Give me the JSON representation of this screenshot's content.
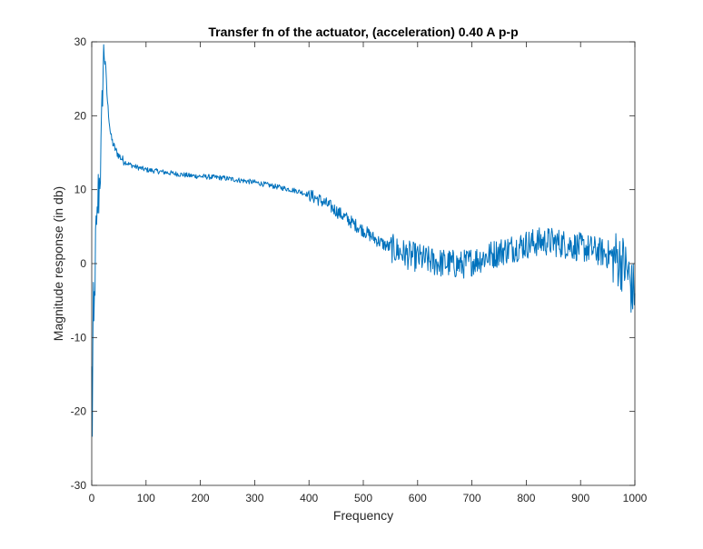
{
  "chart_data": {
    "type": "line",
    "title": "Transfer fn of the actuator, (acceleration) 0.40 A p-p",
    "xlabel": "Frequency",
    "ylabel": "Magnitude response (in db)",
    "xlim": [
      0,
      1000
    ],
    "ylim": [
      -30,
      30
    ],
    "xticks": [
      "0",
      "100",
      "200",
      "300",
      "400",
      "500",
      "600",
      "700",
      "800",
      "900",
      "1000"
    ],
    "yticks": [
      "-30",
      "-20",
      "-10",
      "0",
      "10",
      "20",
      "30"
    ],
    "grid": false,
    "box": true,
    "series": [
      {
        "color": "#0072BD",
        "x": [
          0,
          1,
          2,
          3,
          4,
          5,
          6,
          7,
          8,
          9,
          10,
          11,
          12,
          13,
          14,
          15,
          16,
          17,
          18,
          19,
          20,
          21,
          22,
          23,
          24,
          25,
          26,
          27,
          28,
          29,
          30,
          32,
          34,
          36,
          38,
          40,
          45,
          50,
          55,
          60,
          70,
          80,
          90,
          100,
          120,
          140,
          160,
          180,
          200,
          220,
          240,
          260,
          280,
          300,
          320,
          340,
          360,
          380,
          400,
          420,
          440,
          460,
          480,
          500,
          520,
          540,
          560,
          580,
          600,
          620,
          640,
          660,
          680,
          700,
          720,
          740,
          760,
          780,
          800,
          820,
          840,
          860,
          880,
          900,
          920,
          940,
          960,
          970,
          980,
          990,
          995,
          1000
        ],
        "y": [
          -15,
          -22,
          -12,
          -6,
          -9,
          -5,
          -2,
          2,
          5,
          3,
          6,
          8,
          10,
          9,
          11,
          12,
          13,
          15,
          18,
          21,
          24,
          26.5,
          28,
          28.8,
          28.5,
          27.5,
          26,
          24.5,
          23,
          22,
          21,
          19.5,
          18,
          17,
          16.5,
          16,
          15.2,
          14.6,
          14.2,
          13.8,
          13.4,
          13.1,
          12.9,
          12.7,
          12.5,
          12.3,
          12.1,
          11.9,
          11.8,
          11.7,
          11.6,
          11.4,
          11.2,
          11.0,
          10.7,
          10.4,
          10.1,
          9.8,
          9.3,
          8.6,
          7.7,
          6.6,
          5.5,
          4.5,
          3.4,
          2.5,
          1.8,
          1.2,
          0.8,
          0.4,
          0.1,
          0,
          -0.2,
          0.3,
          0.8,
          1.3,
          1.8,
          2.2,
          2.6,
          2.9,
          3.0,
          2.8,
          2.5,
          2.2,
          1.9,
          1.5,
          1.0,
          0.5,
          0,
          -2,
          -4,
          -3
        ]
      }
    ]
  }
}
